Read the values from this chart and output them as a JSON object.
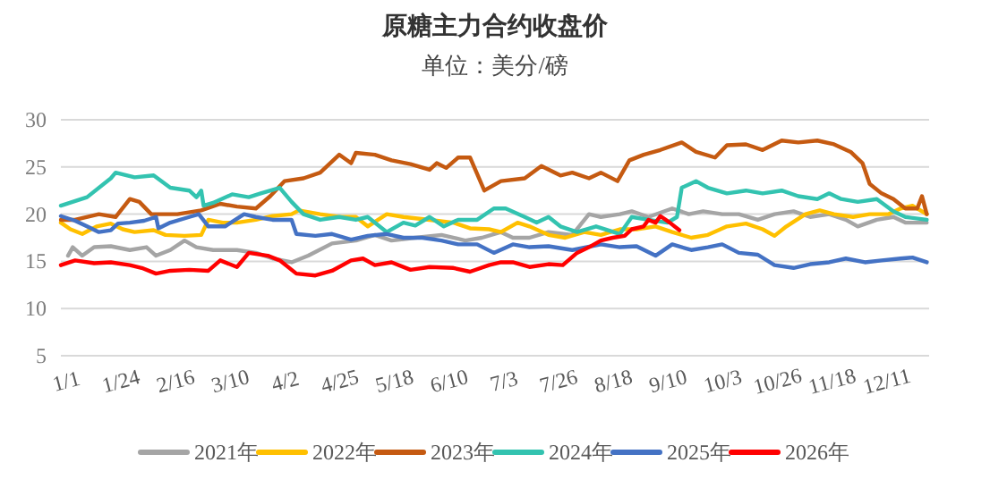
{
  "chart_data": {
    "type": "line",
    "title": "原糖主力合约收盘价",
    "subtitle": "单位：美分/磅",
    "xlim": [
      "--01-01",
      "--12-31"
    ],
    "ylim": [
      5,
      30
    ],
    "yticks": [
      5,
      10,
      15,
      20,
      25,
      30
    ],
    "xticks": [
      {
        "value": "--01-01",
        "label": "1/1"
      },
      {
        "value": "--01-24",
        "label": "1/24"
      },
      {
        "value": "--02-16",
        "label": "2/16"
      },
      {
        "value": "--03-10",
        "label": "3/10"
      },
      {
        "value": "--04-02",
        "label": "4/2"
      },
      {
        "value": "--04-25",
        "label": "4/25"
      },
      {
        "value": "--05-18",
        "label": "5/18"
      },
      {
        "value": "--06-10",
        "label": "6/10"
      },
      {
        "value": "--07-03",
        "label": "7/3"
      },
      {
        "value": "--07-26",
        "label": "7/26"
      },
      {
        "value": "--08-18",
        "label": "8/18"
      },
      {
        "value": "--09-10",
        "label": "9/10"
      },
      {
        "value": "--10-03",
        "label": "10/3"
      },
      {
        "value": "--10-26",
        "label": "10/26"
      },
      {
        "value": "--11-18",
        "label": "11/18"
      },
      {
        "value": "--12-11",
        "label": "12/11"
      }
    ],
    "grid": "y",
    "legend": "bottom",
    "series": [
      {
        "name": "2021年",
        "color": "#a5a5a5",
        "x": [
          "--01-04",
          "--01-06",
          "--01-10",
          "--01-15",
          "--01-22",
          "--01-30",
          "--02-06",
          "--02-10",
          "--02-16",
          "--02-22",
          "--02-27",
          "--03-05",
          "--03-15",
          "--03-23",
          "--03-30",
          "--04-07",
          "--04-14",
          "--04-24",
          "--05-04",
          "--05-12",
          "--05-19",
          "--05-29",
          "--06-09",
          "--06-19",
          "--06-26",
          "--07-04",
          "--07-09",
          "--07-16",
          "--07-24",
          "--08-03",
          "--08-10",
          "--08-15",
          "--08-23",
          "--08-28",
          "--09-04",
          "--09-14",
          "--09-21",
          "--09-27",
          "--10-05",
          "--10-12",
          "--10-20",
          "--10-27",
          "--11-04",
          "--11-11",
          "--11-19",
          "--11-26",
          "--12-01",
          "--12-09",
          "--12-16",
          "--12-21",
          "--12-30"
        ],
        "values": [
          15.6,
          16.5,
          15.6,
          16.5,
          16.6,
          16.2,
          16.5,
          15.6,
          16.2,
          17.2,
          16.5,
          16.2,
          16.2,
          15.9,
          15.3,
          14.9,
          15.6,
          16.9,
          17.2,
          17.8,
          17.2,
          17.5,
          17.8,
          17.2,
          17.5,
          18.1,
          17.5,
          17.5,
          18.1,
          17.8,
          20.0,
          19.7,
          20.0,
          20.3,
          19.7,
          20.6,
          20.0,
          20.3,
          20.0,
          20.0,
          19.4,
          20.0,
          20.3,
          19.7,
          20.0,
          19.4,
          18.7,
          19.4,
          19.7,
          19.1,
          19.1
        ]
      },
      {
        "name": "2022年",
        "color": "#ffc000",
        "x": [
          "--01-01",
          "--01-05",
          "--01-10",
          "--01-16",
          "--01-22",
          "--01-27",
          "--02-01",
          "--02-09",
          "--02-14",
          "--02-22",
          "--02-29",
          "--03-03",
          "--03-09",
          "--03-15",
          "--03-23",
          "--03-30",
          "--04-07",
          "--04-10",
          "--04-19",
          "--04-27",
          "--05-04",
          "--05-09",
          "--05-17",
          "--05-24",
          "--06-04",
          "--06-14",
          "--06-21",
          "--06-29",
          "--07-04",
          "--07-11",
          "--07-16",
          "--07-24",
          "--07-31",
          "--08-08",
          "--08-15",
          "--08-23",
          "--08-30",
          "--09-07",
          "--09-14",
          "--09-22",
          "--09-29",
          "--10-07",
          "--10-15",
          "--10-22",
          "--10-27",
          "--11-01",
          "--11-09",
          "--11-15",
          "--11-21",
          "--11-29",
          "--12-06",
          "--12-14",
          "--12-19",
          "--12-24",
          "--12-30"
        ],
        "values": [
          19.1,
          18.4,
          17.9,
          18.7,
          19.0,
          18.4,
          18.1,
          18.3,
          17.8,
          17.7,
          17.8,
          19.4,
          19.1,
          19.1,
          19.4,
          19.8,
          20.0,
          20.4,
          20.0,
          19.7,
          19.7,
          18.7,
          20.0,
          19.7,
          19.4,
          19.1,
          18.5,
          18.4,
          18.1,
          19.1,
          18.7,
          17.8,
          17.5,
          18.1,
          17.8,
          18.4,
          18.4,
          18.7,
          18.1,
          17.5,
          17.8,
          18.7,
          19.0,
          18.4,
          17.7,
          18.7,
          20.0,
          20.4,
          20.0,
          19.7,
          20.0,
          20.0,
          20.6,
          20.9,
          20.0
        ]
      },
      {
        "name": "2023年",
        "color": "#c55a11",
        "x": [
          "--01-01",
          "--01-07",
          "--01-17",
          "--01-24",
          "--01-30",
          "--02-03",
          "--02-08",
          "--02-19",
          "--02-29",
          "--03-08",
          "--03-15",
          "--03-23",
          "--03-29",
          "--04-04",
          "--04-12",
          "--04-19",
          "--04-27",
          "--05-02",
          "--05-04",
          "--05-12",
          "--05-19",
          "--05-27",
          "--06-04",
          "--06-07",
          "--06-11",
          "--06-16",
          "--06-21",
          "--06-27",
          "--07-04",
          "--07-14",
          "--07-21",
          "--07-29",
          "--08-03",
          "--08-10",
          "--08-15",
          "--08-22",
          "--08-27",
          "--09-02",
          "--09-09",
          "--09-18",
          "--09-24",
          "--10-02",
          "--10-07",
          "--10-15",
          "--10-22",
          "--10-30",
          "--11-06",
          "--11-14",
          "--11-21",
          "--11-28",
          "--12-03",
          "--12-06",
          "--12-11",
          "--12-16",
          "--12-21",
          "--12-26",
          "--12-28",
          "--12-30"
        ],
        "values": [
          19.4,
          19.4,
          20.0,
          19.7,
          21.6,
          21.3,
          20.0,
          20.0,
          20.4,
          21.1,
          20.8,
          20.6,
          21.9,
          23.5,
          23.8,
          24.4,
          26.3,
          25.4,
          26.5,
          26.3,
          25.7,
          25.3,
          24.7,
          25.4,
          24.9,
          26.0,
          26.0,
          22.5,
          23.5,
          23.8,
          25.1,
          24.1,
          24.4,
          23.8,
          24.4,
          23.5,
          25.7,
          26.3,
          26.8,
          27.6,
          26.6,
          26.0,
          27.3,
          27.4,
          26.8,
          27.8,
          27.6,
          27.8,
          27.4,
          26.6,
          25.4,
          23.2,
          22.2,
          21.6,
          20.6,
          20.6,
          21.9,
          20.0
        ]
      },
      {
        "name": "2024年",
        "color": "#33c3b0",
        "x": [
          "--01-01",
          "--01-12",
          "--01-22",
          "--01-24",
          "--02-01",
          "--02-09",
          "--02-16",
          "--02-24",
          "--02-27",
          "--02-29",
          "--03-01",
          "--03-05",
          "--03-13",
          "--03-20",
          "--03-25",
          "--04-02",
          "--04-07",
          "--04-12",
          "--04-19",
          "--04-27",
          "--05-04",
          "--05-09",
          "--05-17",
          "--05-24",
          "--05-29",
          "--06-04",
          "--06-10",
          "--06-16",
          "--06-24",
          "--07-01",
          "--07-06",
          "--07-14",
          "--07-19",
          "--07-24",
          "--07-29",
          "--08-05",
          "--08-13",
          "--08-23",
          "--08-28",
          "--09-04",
          "--09-12",
          "--09-16",
          "--09-18",
          "--09-24",
          "--09-29",
          "--10-07",
          "--10-15",
          "--10-22",
          "--10-30",
          "--11-06",
          "--11-14",
          "--11-19",
          "--11-24",
          "--12-01",
          "--12-09",
          "--12-16",
          "--12-21",
          "--12-30"
        ],
        "values": [
          20.9,
          21.8,
          23.8,
          24.4,
          23.9,
          24.1,
          22.8,
          22.5,
          21.8,
          22.5,
          20.9,
          21.2,
          22.1,
          21.8,
          22.2,
          22.8,
          21.3,
          20.0,
          19.4,
          19.7,
          19.4,
          19.7,
          18.1,
          19.1,
          18.8,
          19.7,
          18.7,
          19.4,
          19.4,
          20.6,
          20.6,
          19.7,
          19.1,
          19.7,
          18.7,
          18.1,
          18.7,
          17.9,
          19.7,
          19.4,
          19.1,
          19.7,
          22.8,
          23.5,
          22.8,
          22.2,
          22.5,
          22.2,
          22.5,
          21.9,
          21.6,
          22.2,
          21.6,
          21.3,
          21.6,
          20.3,
          19.7,
          19.4
        ]
      },
      {
        "name": "2025年",
        "color": "#4472c4",
        "x": [
          "--01-01",
          "--01-07",
          "--01-12",
          "--01-17",
          "--01-22",
          "--01-25",
          "--01-30",
          "--02-05",
          "--02-10",
          "--02-11",
          "--02-16",
          "--02-24",
          "--02-28",
          "--03-03",
          "--03-10",
          "--03-18",
          "--03-23",
          "--03-30",
          "--04-07",
          "--04-09",
          "--04-17",
          "--04-24",
          "--05-02",
          "--05-09",
          "--05-17",
          "--05-24",
          "--06-01",
          "--06-09",
          "--06-16",
          "--06-24",
          "--07-01",
          "--07-09",
          "--07-16",
          "--07-24",
          "--08-03",
          "--08-15",
          "--08-23",
          "--08-30",
          "--09-07",
          "--09-14",
          "--09-22",
          "--09-29",
          "--10-05",
          "--10-12",
          "--10-20",
          "--10-27",
          "--11-04",
          "--11-11",
          "--11-19",
          "--11-26",
          "--12-04",
          "--12-11",
          "--12-19",
          "--12-24",
          "--12-30"
        ],
        "values": [
          19.8,
          19.3,
          18.7,
          18.1,
          18.3,
          19.0,
          19.1,
          19.3,
          19.7,
          18.5,
          19.1,
          19.7,
          20.0,
          18.7,
          18.7,
          20.0,
          19.7,
          19.4,
          19.4,
          17.9,
          17.7,
          17.9,
          17.3,
          17.7,
          17.9,
          17.5,
          17.5,
          17.2,
          16.8,
          16.8,
          15.9,
          16.8,
          16.5,
          16.6,
          16.2,
          16.8,
          16.5,
          16.6,
          15.6,
          16.8,
          16.2,
          16.5,
          16.8,
          15.9,
          15.7,
          14.6,
          14.3,
          14.7,
          14.9,
          15.3,
          14.9,
          15.1,
          15.3,
          15.4,
          14.9
        ]
      },
      {
        "name": "2026年",
        "color": "#ff0000",
        "x": [
          "--01-01",
          "--01-07",
          "--01-15",
          "--01-22",
          "--01-30",
          "--02-04",
          "--02-10",
          "--02-16",
          "--02-24",
          "--03-03",
          "--03-08",
          "--03-15",
          "--03-20",
          "--03-28",
          "--04-02",
          "--04-09",
          "--04-17",
          "--04-24",
          "--05-02",
          "--05-07",
          "--05-12",
          "--05-19",
          "--05-27",
          "--06-04",
          "--06-14",
          "--06-21",
          "--06-29",
          "--07-04",
          "--07-09",
          "--07-16",
          "--07-24",
          "--07-30",
          "--08-05",
          "--08-10",
          "--08-15",
          "--08-20",
          "--08-25",
          "--08-28",
          "--09-02",
          "--09-04",
          "--09-07",
          "--09-09",
          "--09-13",
          "--09-17"
        ],
        "values": [
          14.6,
          15.1,
          14.8,
          14.9,
          14.6,
          14.3,
          13.7,
          14.0,
          14.1,
          14.0,
          15.1,
          14.4,
          15.9,
          15.6,
          15.1,
          13.7,
          13.5,
          14.0,
          15.1,
          15.3,
          14.6,
          14.9,
          14.1,
          14.4,
          14.3,
          13.9,
          14.6,
          14.9,
          14.9,
          14.4,
          14.7,
          14.6,
          15.9,
          16.5,
          17.2,
          17.5,
          17.7,
          18.4,
          18.7,
          19.4,
          19.1,
          19.8,
          19.1,
          18.3
        ]
      }
    ]
  }
}
